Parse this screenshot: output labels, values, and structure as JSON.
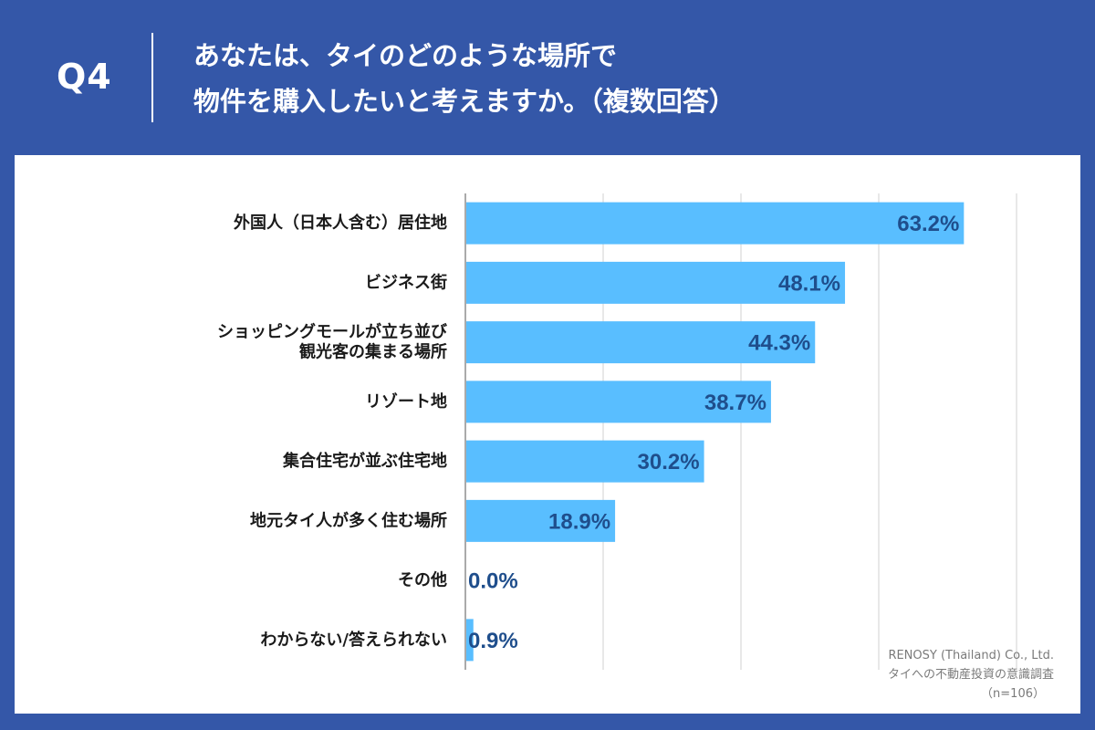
{
  "header": {
    "question_number": "Q4",
    "title_line1": "あなたは、タイのどのような場所で",
    "title_line2": "物件を購入したいと考えますか。（複数回答）"
  },
  "colors": {
    "background": "#3457A8",
    "bar": "#59BEFF",
    "value_text": "#1F4E8C",
    "grid": "#D0D0D0",
    "axis": "#555555"
  },
  "chart_data": {
    "type": "bar",
    "orientation": "horizontal",
    "categories": [
      [
        "外国人（日本人含む）居住地"
      ],
      [
        "ビジネス街"
      ],
      [
        "ショッピングモールが立ち並び",
        "観光客の集まる場所"
      ],
      [
        "リゾート地"
      ],
      [
        "集合住宅が並ぶ住宅地"
      ],
      [
        "地元タイ人が多く住む場所"
      ],
      [
        "その他"
      ],
      [
        "わからない/答えられない"
      ]
    ],
    "values": [
      63.2,
      48.1,
      44.3,
      38.7,
      30.2,
      18.9,
      0.0,
      0.9
    ],
    "value_labels": [
      "63.2%",
      "48.1%",
      "44.3%",
      "38.7%",
      "30.2%",
      "18.9%",
      "0.0%",
      "0.9%"
    ],
    "xlim": [
      0,
      70
    ],
    "gridlines": [
      0,
      17.5,
      35,
      52.5,
      70
    ],
    "grid": true,
    "legend": "none"
  },
  "footer": {
    "company": "RENOSY (Thailand) Co., Ltd.",
    "survey": "タイへの不動産投資の意識調査",
    "sample": "（n=106）"
  }
}
